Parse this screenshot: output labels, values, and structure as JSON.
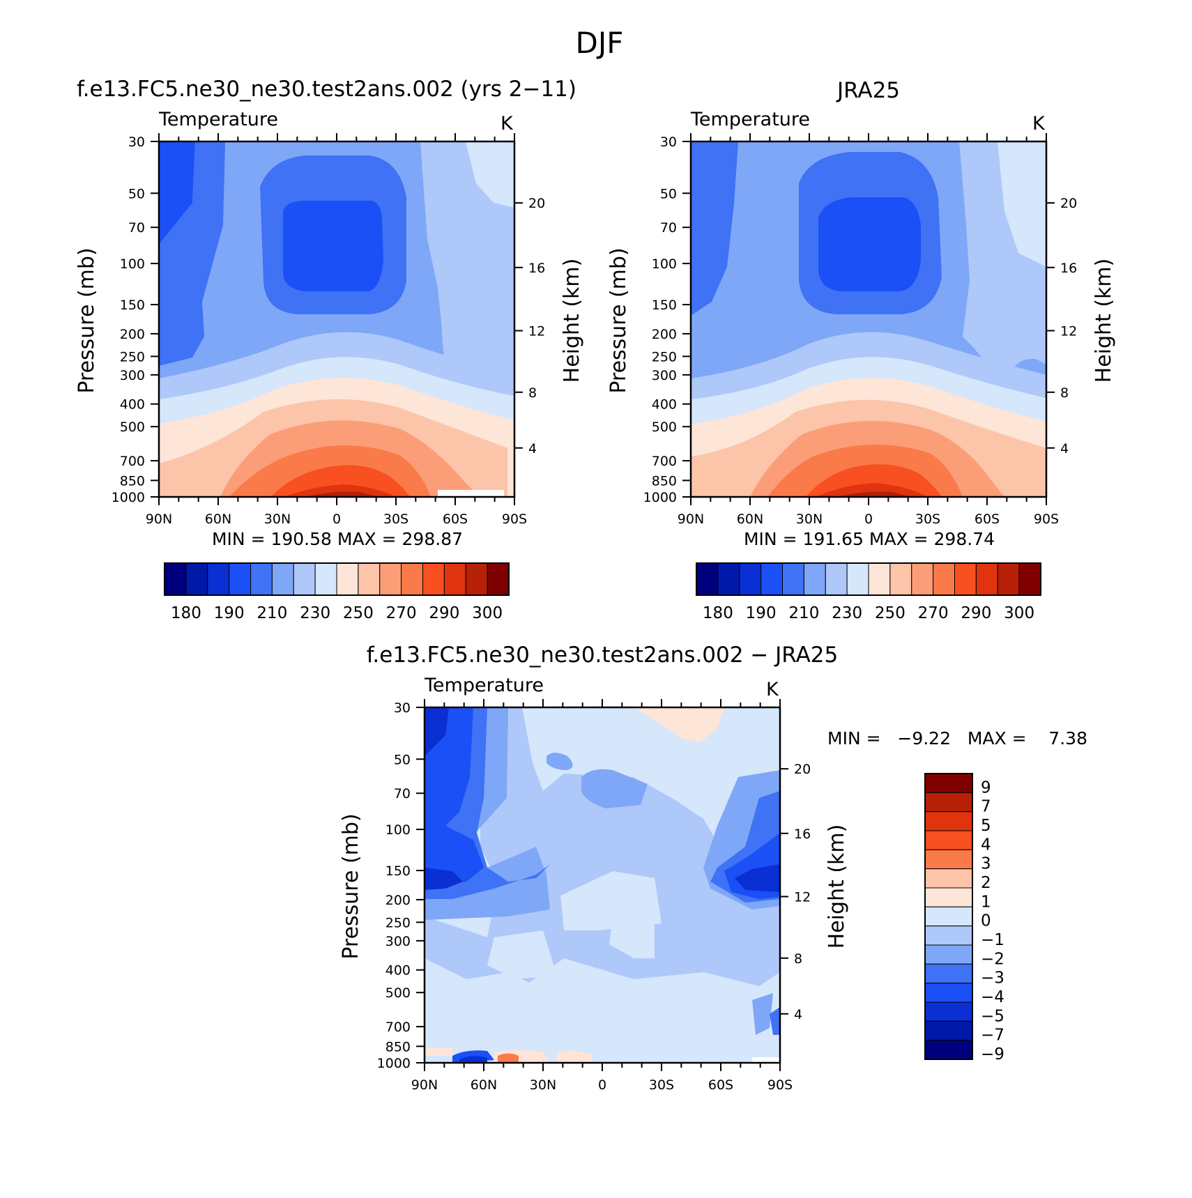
{
  "figure": {
    "title": "DJF"
  },
  "chart_data": [
    {
      "type": "heatmap",
      "title": "f.e13.FC5.ne30_ne30.test2ans.002 (yrs 2−11)",
      "variable": "Temperature",
      "units": "K",
      "ylabel": "Pressure (mb)",
      "yscale": "log",
      "y_ticks": [
        30,
        50,
        70,
        100,
        150,
        200,
        250,
        300,
        400,
        500,
        700,
        850,
        1000
      ],
      "x_ticks": [
        "90N",
        "60N",
        "30N",
        "0",
        "30S",
        "60S",
        "90S"
      ],
      "right_axis": {
        "label": "Height (km)",
        "ticks": [
          20,
          16,
          12,
          8,
          4
        ],
        "pressure_at_tick": [
          55,
          104,
          194,
          356,
          617
        ]
      },
      "stats_text": "MIN =  190.58   MAX =  298.87",
      "min": 190.58,
      "max": 298.87,
      "colorbar": {
        "orientation": "horizontal",
        "colors": [
          "#00007f",
          "#0019a8",
          "#0a2fd2",
          "#1a50f5",
          "#3f72f5",
          "#7fa7f7",
          "#aec8fa",
          "#d6e6fb",
          "#fde5d8",
          "#fcc4a9",
          "#fb9e78",
          "#fb7a4a",
          "#f85020",
          "#e0340e",
          "#b52006",
          "#800000"
        ],
        "tick_labels": [
          "180",
          "190",
          "210",
          "230",
          "250",
          "270",
          "290",
          "300"
        ]
      }
    },
    {
      "type": "heatmap",
      "title": "JRA25",
      "variable": "Temperature",
      "units": "K",
      "ylabel": "Pressure (mb)",
      "yscale": "log",
      "y_ticks": [
        30,
        50,
        70,
        100,
        150,
        200,
        250,
        300,
        400,
        500,
        700,
        850,
        1000
      ],
      "x_ticks": [
        "90N",
        "60N",
        "30N",
        "0",
        "30S",
        "60S",
        "90S"
      ],
      "right_axis": {
        "label": "Height (km)",
        "ticks": [
          20,
          16,
          12,
          8,
          4
        ],
        "pressure_at_tick": [
          55,
          104,
          194,
          356,
          617
        ]
      },
      "stats_text": "MIN =  191.65   MAX =  298.74",
      "min": 191.65,
      "max": 298.74,
      "colorbar": {
        "orientation": "horizontal",
        "colors": [
          "#00007f",
          "#0019a8",
          "#0a2fd2",
          "#1a50f5",
          "#3f72f5",
          "#7fa7f7",
          "#aec8fa",
          "#d6e6fb",
          "#fde5d8",
          "#fcc4a9",
          "#fb9e78",
          "#fb7a4a",
          "#f85020",
          "#e0340e",
          "#b52006",
          "#800000"
        ],
        "tick_labels": [
          "180",
          "190",
          "210",
          "230",
          "250",
          "270",
          "290",
          "300"
        ]
      }
    },
    {
      "type": "heatmap",
      "title": "f.e13.FC5.ne30_ne30.test2ans.002 − JRA25",
      "variable": "Temperature",
      "units": "K",
      "ylabel": "Pressure (mb)",
      "yscale": "log",
      "y_ticks": [
        30,
        50,
        70,
        100,
        150,
        200,
        250,
        300,
        400,
        500,
        700,
        850,
        1000
      ],
      "x_ticks": [
        "90N",
        "60N",
        "30N",
        "0",
        "30S",
        "60S",
        "90S"
      ],
      "right_axis": {
        "label": "Height (km)",
        "ticks": [
          20,
          16,
          12,
          8,
          4
        ],
        "pressure_at_tick": [
          55,
          104,
          194,
          356,
          617
        ]
      },
      "stats_text": "MIN =   −9.22   MAX =    7.38",
      "min": -9.22,
      "max": 7.38,
      "colorbar": {
        "orientation": "vertical",
        "colors": [
          "#800000",
          "#b52006",
          "#e0340e",
          "#f85020",
          "#fb7a4a",
          "#fcc4a9",
          "#fde5d8",
          "#d6e6fb",
          "#aec8fa",
          "#7fa7f7",
          "#3f72f5",
          "#1a50f5",
          "#0a2fd2",
          "#0019a8",
          "#00007f"
        ],
        "tick_labels": [
          "9",
          "7",
          "5",
          "4",
          "3",
          "2",
          "1",
          "0",
          "−1",
          "−2",
          "−3",
          "−4",
          "−5",
          "−7",
          "−9"
        ]
      }
    }
  ]
}
